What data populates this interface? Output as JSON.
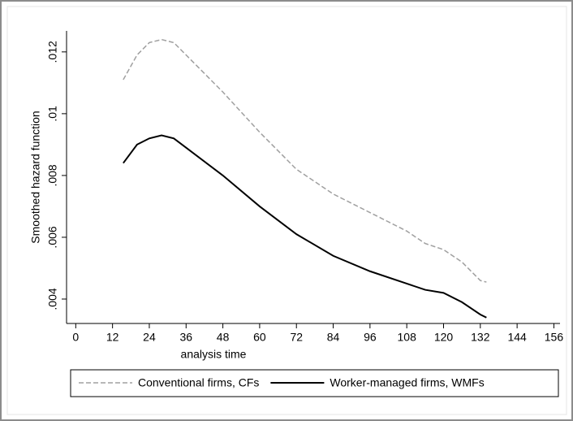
{
  "chart_data": {
    "type": "line",
    "xlabel": "analysis time",
    "ylabel": "Smoothed hazard function",
    "x": [
      15.5,
      20,
      24,
      28,
      32,
      36,
      48,
      60,
      72,
      84,
      96,
      108,
      114,
      120,
      126,
      132,
      134
    ],
    "series": [
      {
        "name": "Conventional firms, CFs",
        "color": "#a0a0a0",
        "dash": true,
        "values": [
          0.0111,
          0.0119,
          0.0123,
          0.0124,
          0.0123,
          0.0119,
          0.0107,
          0.0094,
          0.0082,
          0.0074,
          0.0068,
          0.0062,
          0.0058,
          0.0056,
          0.0052,
          0.0046,
          0.00455
        ]
      },
      {
        "name": "Worker-managed firms, WMFs",
        "color": "#000000",
        "dash": false,
        "values": [
          0.0084,
          0.009,
          0.0092,
          0.0093,
          0.0092,
          0.0089,
          0.008,
          0.007,
          0.0061,
          0.0054,
          0.0049,
          0.0045,
          0.0043,
          0.0042,
          0.0039,
          0.0035,
          0.0034
        ]
      }
    ],
    "xlim": [
      -3,
      158
    ],
    "xticks": [
      0,
      12,
      24,
      36,
      48,
      60,
      72,
      84,
      96,
      108,
      120,
      132,
      144,
      156
    ],
    "ylim": [
      0.00321,
      0.01268
    ],
    "yticks": [
      {
        "value": 0.004,
        "label": ".004"
      },
      {
        "value": 0.006,
        "label": ".006"
      },
      {
        "value": 0.008,
        "label": ".008"
      },
      {
        "value": 0.01,
        "label": ".01"
      },
      {
        "value": 0.012,
        "label": ".012"
      }
    ],
    "legend": "bottom"
  }
}
